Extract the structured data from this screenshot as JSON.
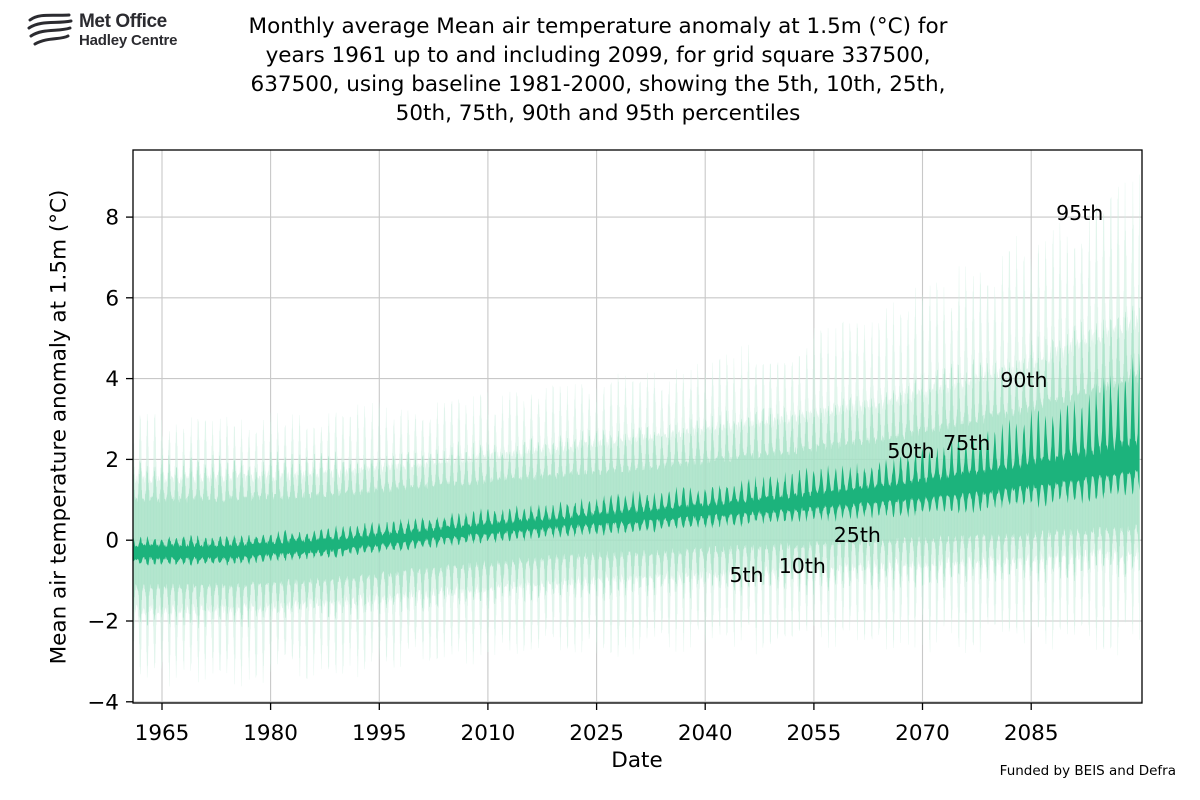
{
  "header": {
    "logo_line1": "Met Office",
    "logo_line2": "Hadley Centre",
    "title_lines": [
      "Monthly average Mean air temperature anomaly at 1.5m (°C) for",
      "years 1961 up to and including 2099, for grid square 337500,",
      "637500, using baseline 1981-2000, showing the 5th, 10th, 25th,",
      "50th, 75th, 90th and 95th percentiles"
    ]
  },
  "footer": {
    "funding": "Funded by BEIS and Defra"
  },
  "chart_data": {
    "type": "area",
    "title": "Monthly average Mean air temperature anomaly at 1.5m (°C) for years 1961 up to and including 2099, for grid square 337500, 637500, using baseline 1981-2000, showing the 5th, 10th, 25th, 50th, 75th, 90th and 95th percentiles",
    "xlabel": "Date",
    "ylabel": "Mean air temperature anomaly at 1.5m (°C)",
    "xlim": [
      1961,
      2100.3
    ],
    "ylim": [
      -4.03,
      9.66
    ],
    "xticks": [
      1965,
      1980,
      1995,
      2010,
      2025,
      2040,
      2055,
      2070,
      2085
    ],
    "yticks": [
      8,
      6,
      4,
      2,
      0,
      -2,
      -4
    ],
    "grid": true,
    "colors": {
      "band_5_95": "#cfeee0",
      "band_10_90": "#9fdfc2",
      "band_25_75": "#1cb37c",
      "grid": "#c8c8c8",
      "axis": "#000000",
      "text": "#000000"
    },
    "annotations": [
      {
        "label": "95th",
        "year": 2091.7,
        "value": 8.1
      },
      {
        "label": "90th",
        "year": 2084.0,
        "value": 3.97
      },
      {
        "label": "75th",
        "year": 2076.1,
        "value": 2.41
      },
      {
        "label": "50th",
        "year": 2068.4,
        "value": 2.21
      },
      {
        "label": "25th",
        "year": 2061.0,
        "value": 0.13
      },
      {
        "label": "10th",
        "year": 2053.4,
        "value": -0.64
      },
      {
        "label": "5th",
        "year": 2045.7,
        "value": -0.86
      }
    ],
    "months_per_year": 12,
    "start_year": 1961,
    "end_year": 2099,
    "trend_years": [
      1961,
      1975,
      1990,
      2005,
      2020,
      2035,
      2050,
      2065,
      2080,
      2090,
      2099
    ],
    "percentiles": {
      "p95": {
        "summer": [
          1.5,
          1.52,
          1.65,
          1.95,
          2.25,
          2.6,
          2.95,
          3.4,
          4.1,
          4.7,
          5.4
        ],
        "winter": [
          2.9,
          2.92,
          3.05,
          3.35,
          3.7,
          4.1,
          4.7,
          5.5,
          6.7,
          7.6,
          8.6
        ]
      },
      "p90": {
        "summer": [
          1.0,
          1.02,
          1.15,
          1.4,
          1.6,
          1.85,
          2.15,
          2.5,
          3.05,
          3.5,
          4.0
        ],
        "winter": [
          1.9,
          1.92,
          2.05,
          2.25,
          2.5,
          2.8,
          3.2,
          3.7,
          4.4,
          5.0,
          5.6
        ]
      },
      "p75": {
        "summer": [
          -0.15,
          -0.12,
          0.05,
          0.32,
          0.56,
          0.8,
          1.05,
          1.35,
          1.75,
          2.05,
          2.4
        ],
        "winter": [
          0.05,
          0.08,
          0.3,
          0.62,
          0.92,
          1.22,
          1.55,
          1.95,
          2.65,
          3.3,
          4.25
        ]
      },
      "p50": {
        "summer": [
          -0.32,
          -0.3,
          -0.06,
          0.28,
          0.55,
          0.78,
          1.0,
          1.22,
          1.48,
          1.72,
          1.95
        ],
        "winter": [
          -0.22,
          -0.2,
          0.06,
          0.42,
          0.7,
          0.93,
          1.18,
          1.45,
          1.75,
          2.05,
          2.5
        ]
      },
      "p25": {
        "summer": [
          -0.45,
          -0.43,
          -0.22,
          0.08,
          0.32,
          0.52,
          0.72,
          0.95,
          1.2,
          1.45,
          1.7
        ],
        "winter": [
          -0.6,
          -0.58,
          -0.38,
          -0.12,
          0.1,
          0.28,
          0.45,
          0.62,
          0.8,
          0.95,
          1.15
        ]
      },
      "p10": {
        "summer": [
          -1.15,
          -1.13,
          -0.95,
          -0.65,
          -0.42,
          -0.28,
          -0.15,
          -0.02,
          0.1,
          0.2,
          0.3
        ],
        "winter": [
          -2.0,
          -1.98,
          -1.8,
          -1.55,
          -1.35,
          -1.25,
          -1.15,
          -1.05,
          -0.95,
          -0.88,
          -0.8
        ]
      },
      "p5": {
        "summer": [
          -1.7,
          -1.68,
          -1.5,
          -1.25,
          -1.02,
          -0.88,
          -0.75,
          -0.6,
          -0.48,
          -0.38,
          -0.3
        ],
        "winter": [
          -3.35,
          -3.32,
          -3.1,
          -2.85,
          -2.65,
          -2.55,
          -2.5,
          -2.45,
          -2.42,
          -2.4,
          -2.4
        ]
      }
    },
    "bands": [
      {
        "name": "band-5-95",
        "upper": "p95",
        "lower": "p5",
        "color_key": "band_5_95",
        "sharp": 3.2,
        "poly_opacity": 0.38,
        "stroke_w": 0.4,
        "stroke_opacity": 0.55
      },
      {
        "name": "band-10-90",
        "upper": "p90",
        "lower": "p10",
        "color_key": "band_10_90",
        "sharp": 2.6,
        "poly_opacity": 0.45,
        "stroke_w": 0.5,
        "stroke_opacity": 0.6
      },
      {
        "name": "band-25-75",
        "upper": "p75",
        "lower": "p25",
        "color_key": "band_25_75",
        "sharp": 2.0,
        "poly_opacity": 1.0,
        "stroke_w": 0.0,
        "stroke_opacity": 0.0
      }
    ]
  }
}
